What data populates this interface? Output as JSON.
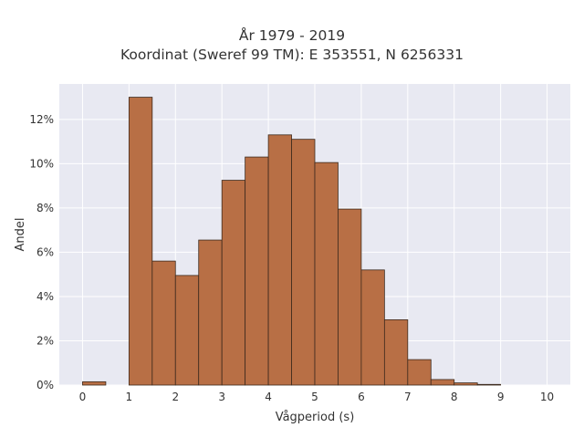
{
  "chart_data": {
    "type": "bar",
    "title": "År 1979 - 2019",
    "subtitle": "Koordinat (Sweref 99 TM): E 353551, N 6256331",
    "xlabel": "Vågperiod (s)",
    "ylabel": "Andel",
    "xlim": [
      -0.5,
      10.5
    ],
    "ylim": [
      0,
      13.6
    ],
    "x_ticks": [
      0,
      1,
      2,
      3,
      4,
      5,
      6,
      7,
      8,
      9,
      10
    ],
    "y_ticks": [
      0,
      2,
      4,
      6,
      8,
      10,
      12
    ],
    "y_tick_labels": [
      "0%",
      "2%",
      "4%",
      "6%",
      "8%",
      "10%",
      "12%"
    ],
    "grid": true,
    "bin_width": 0.5,
    "bins": [
      {
        "start": 0.0,
        "value": 0.15
      },
      {
        "start": 0.5,
        "value": 0.0
      },
      {
        "start": 1.0,
        "value": 13.0
      },
      {
        "start": 1.5,
        "value": 5.6
      },
      {
        "start": 2.0,
        "value": 4.95
      },
      {
        "start": 2.5,
        "value": 6.55
      },
      {
        "start": 3.0,
        "value": 9.25
      },
      {
        "start": 3.5,
        "value": 10.3
      },
      {
        "start": 4.0,
        "value": 11.3
      },
      {
        "start": 4.5,
        "value": 11.1
      },
      {
        "start": 5.0,
        "value": 10.05
      },
      {
        "start": 5.5,
        "value": 7.95
      },
      {
        "start": 6.0,
        "value": 5.2
      },
      {
        "start": 6.5,
        "value": 2.95
      },
      {
        "start": 7.0,
        "value": 1.15
      },
      {
        "start": 7.5,
        "value": 0.25
      },
      {
        "start": 8.0,
        "value": 0.1
      },
      {
        "start": 8.5,
        "value": 0.03
      },
      {
        "start": 9.0,
        "value": 0.0
      },
      {
        "start": 9.5,
        "value": 0.0
      }
    ],
    "colors": {
      "bar_fill": "#b86f45",
      "bar_edge": "#3d2a1d",
      "plot_bg": "#e8e9f2",
      "grid": "#ffffff"
    }
  }
}
